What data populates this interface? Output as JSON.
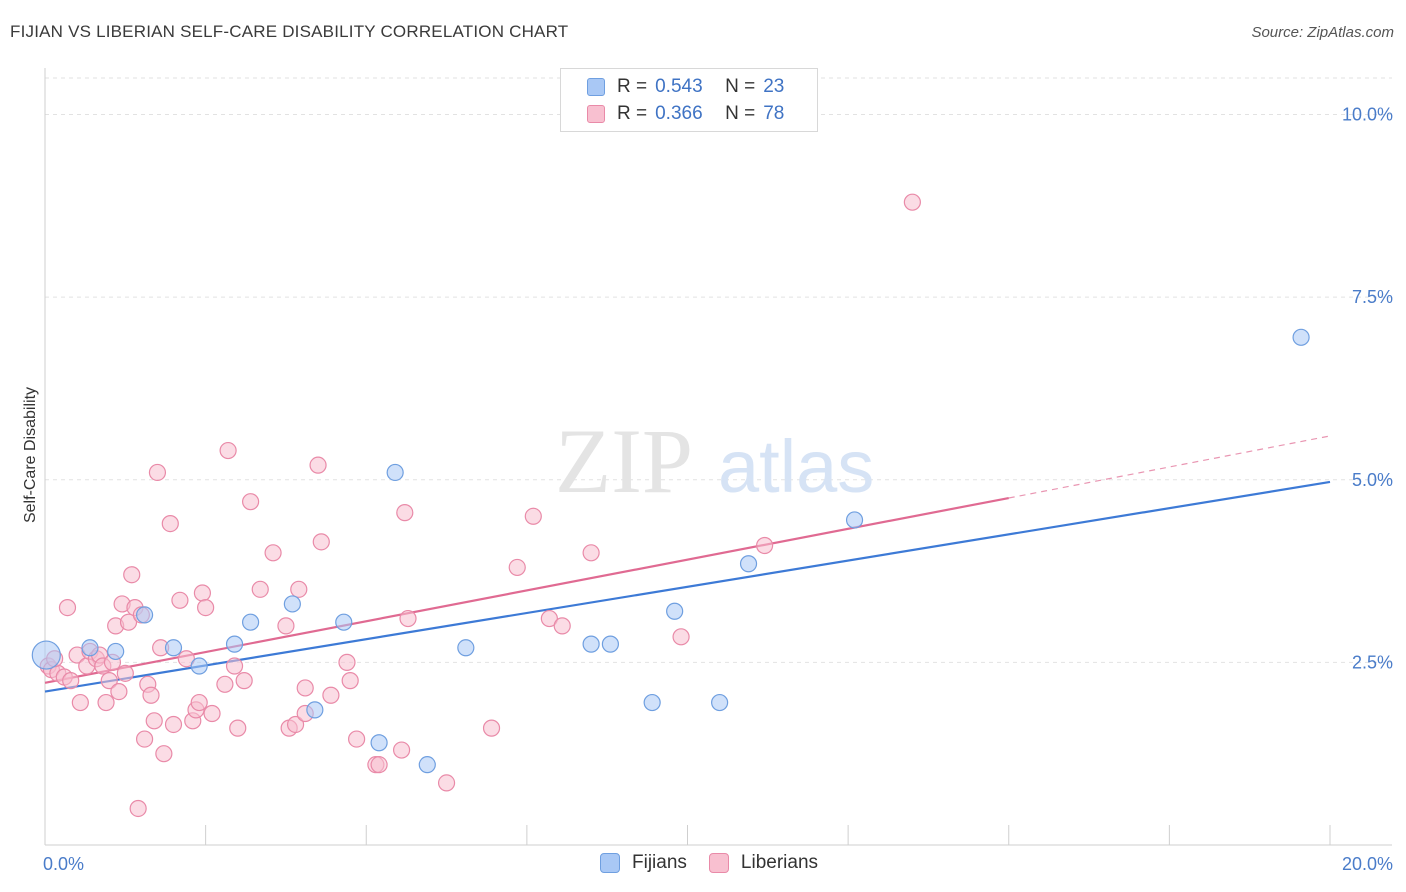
{
  "title": "FIJIAN VS LIBERIAN SELF-CARE DISABILITY CORRELATION CHART",
  "source": "Source: ZipAtlas.com",
  "watermark": {
    "zip": "ZIP",
    "atlas": "atlas"
  },
  "legend": {
    "rows": [
      {
        "r_label": "R =",
        "r_value": "0.543",
        "n_label": "N =",
        "n_value": "23",
        "color": "#a9c8f5",
        "border": "#6f9fe0"
      },
      {
        "r_label": "R =",
        "r_value": "0.366",
        "n_label": "N =",
        "n_value": "78",
        "color": "#f8c0d0",
        "border": "#e98aa8"
      }
    ]
  },
  "bottom_legend": [
    {
      "label": "Fijians",
      "color": "#a9c8f5",
      "border": "#6f9fe0"
    },
    {
      "label": "Liberians",
      "color": "#f8c0d0",
      "border": "#e98aa8"
    }
  ],
  "chart_data": {
    "type": "scatter",
    "ylabel": "Self-Care Disability",
    "xlim": [
      0,
      20
    ],
    "ylim": [
      0,
      10.5
    ],
    "x_tick_labels": [
      "0.0%",
      "20.0%"
    ],
    "y_ticks": [
      2.5,
      5.0,
      7.5,
      10.0
    ],
    "y_tick_labels": [
      "2.5%",
      "5.0%",
      "7.5%",
      "10.0%"
    ],
    "grid": true,
    "series": [
      {
        "name": "Fijians",
        "color": "#6f9fe0",
        "fill": "#a9c8f5",
        "points": [
          [
            0.02,
            2.6
          ],
          [
            0.7,
            2.7
          ],
          [
            1.1,
            2.65
          ],
          [
            1.55,
            3.15
          ],
          [
            2.0,
            2.7
          ],
          [
            2.4,
            2.45
          ],
          [
            2.95,
            2.75
          ],
          [
            3.2,
            3.05
          ],
          [
            3.85,
            3.3
          ],
          [
            4.2,
            1.85
          ],
          [
            4.65,
            3.05
          ],
          [
            5.2,
            1.4
          ],
          [
            5.45,
            5.1
          ],
          [
            5.95,
            1.1
          ],
          [
            6.55,
            2.7
          ],
          [
            8.5,
            2.75
          ],
          [
            8.8,
            2.75
          ],
          [
            9.45,
            1.95
          ],
          [
            9.8,
            3.2
          ],
          [
            10.5,
            1.95
          ],
          [
            10.95,
            3.85
          ],
          [
            12.6,
            4.45
          ],
          [
            19.55,
            6.95
          ]
        ],
        "trend": {
          "x": [
            0,
            20
          ],
          "y": [
            2.1,
            4.97
          ]
        }
      },
      {
        "name": "Liberians",
        "color": "#e98aa8",
        "fill": "#f8c0d0",
        "points": [
          [
            0.05,
            2.45
          ],
          [
            0.1,
            2.4
          ],
          [
            0.2,
            2.35
          ],
          [
            0.3,
            2.3
          ],
          [
            0.35,
            3.25
          ],
          [
            0.4,
            2.25
          ],
          [
            0.5,
            2.6
          ],
          [
            0.55,
            1.95
          ],
          [
            0.65,
            2.45
          ],
          [
            0.7,
            2.65
          ],
          [
            0.8,
            2.55
          ],
          [
            0.85,
            2.6
          ],
          [
            0.9,
            2.45
          ],
          [
            0.95,
            1.95
          ],
          [
            1.0,
            2.25
          ],
          [
            1.05,
            2.5
          ],
          [
            1.1,
            3.0
          ],
          [
            1.15,
            2.1
          ],
          [
            1.2,
            3.3
          ],
          [
            1.25,
            2.35
          ],
          [
            1.3,
            3.05
          ],
          [
            1.35,
            3.7
          ],
          [
            1.4,
            3.25
          ],
          [
            1.45,
            0.5
          ],
          [
            1.5,
            3.15
          ],
          [
            1.55,
            1.45
          ],
          [
            1.6,
            2.2
          ],
          [
            1.7,
            1.7
          ],
          [
            1.75,
            5.1
          ],
          [
            1.8,
            2.7
          ],
          [
            1.85,
            1.25
          ],
          [
            1.95,
            4.4
          ],
          [
            2.0,
            1.65
          ],
          [
            2.1,
            3.35
          ],
          [
            2.2,
            2.55
          ],
          [
            2.3,
            1.7
          ],
          [
            2.35,
            1.85
          ],
          [
            2.4,
            1.95
          ],
          [
            2.45,
            3.45
          ],
          [
            2.5,
            3.25
          ],
          [
            2.6,
            1.8
          ],
          [
            2.8,
            2.2
          ],
          [
            2.85,
            5.4
          ],
          [
            2.95,
            2.45
          ],
          [
            3.0,
            1.6
          ],
          [
            3.1,
            2.25
          ],
          [
            3.2,
            4.7
          ],
          [
            3.35,
            3.5
          ],
          [
            3.55,
            4.0
          ],
          [
            3.75,
            3.0
          ],
          [
            3.8,
            1.6
          ],
          [
            3.9,
            1.65
          ],
          [
            3.95,
            3.5
          ],
          [
            4.05,
            1.8
          ],
          [
            4.05,
            2.15
          ],
          [
            4.25,
            5.2
          ],
          [
            4.3,
            4.15
          ],
          [
            4.45,
            2.05
          ],
          [
            4.7,
            2.5
          ],
          [
            4.75,
            2.25
          ],
          [
            4.85,
            1.45
          ],
          [
            5.15,
            1.1
          ],
          [
            5.2,
            1.1
          ],
          [
            5.55,
            1.3
          ],
          [
            5.6,
            4.55
          ],
          [
            5.65,
            3.1
          ],
          [
            6.25,
            0.85
          ],
          [
            6.95,
            1.6
          ],
          [
            7.35,
            3.8
          ],
          [
            7.6,
            4.5
          ],
          [
            7.85,
            3.1
          ],
          [
            8.05,
            3.0
          ],
          [
            8.5,
            4.0
          ],
          [
            9.9,
            2.85
          ],
          [
            11.2,
            4.1
          ],
          [
            13.5,
            8.8
          ],
          [
            1.65,
            2.05
          ],
          [
            0.15,
            2.55
          ]
        ],
        "trend": {
          "x": [
            0,
            15
          ],
          "y": [
            2.22,
            4.75
          ]
        },
        "trend_extension": {
          "x": [
            15,
            20
          ],
          "y": [
            4.75,
            5.6
          ]
        }
      }
    ]
  }
}
